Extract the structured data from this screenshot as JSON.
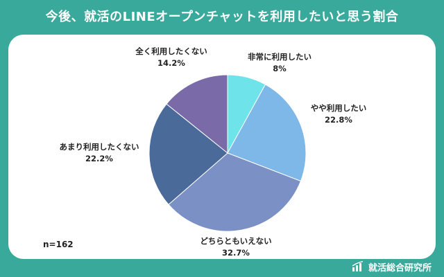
{
  "title": "今後、就活のLINEオープンチャットを利用したいと思う割合",
  "sample_size": "n=162",
  "brand": "就活総合研究所",
  "colors": {
    "background": "#39a99b",
    "card": "#ffffff"
  },
  "chart_data": {
    "type": "pie",
    "title": "今後、就活のLINEオープンチャットを利用したいと思う割合",
    "start_angle_deg": 0,
    "direction": "clockwise",
    "slices": [
      {
        "label": "非常に利用したい",
        "value": 8,
        "value_label": "8%",
        "color": "#6ee3ea"
      },
      {
        "label": "やや利用したい",
        "value": 22.8,
        "value_label": "22.8%",
        "color": "#7db8e8"
      },
      {
        "label": "どちらともいえない",
        "value": 32.7,
        "value_label": "32.7%",
        "color": "#7b91c6"
      },
      {
        "label": "あまり利用したくない",
        "value": 22.2,
        "value_label": "22.2%",
        "color": "#4a6a9a"
      },
      {
        "label": "全く利用したくない",
        "value": 14.2,
        "value_label": "14.2%",
        "color": "#7a6aa8"
      }
    ]
  }
}
